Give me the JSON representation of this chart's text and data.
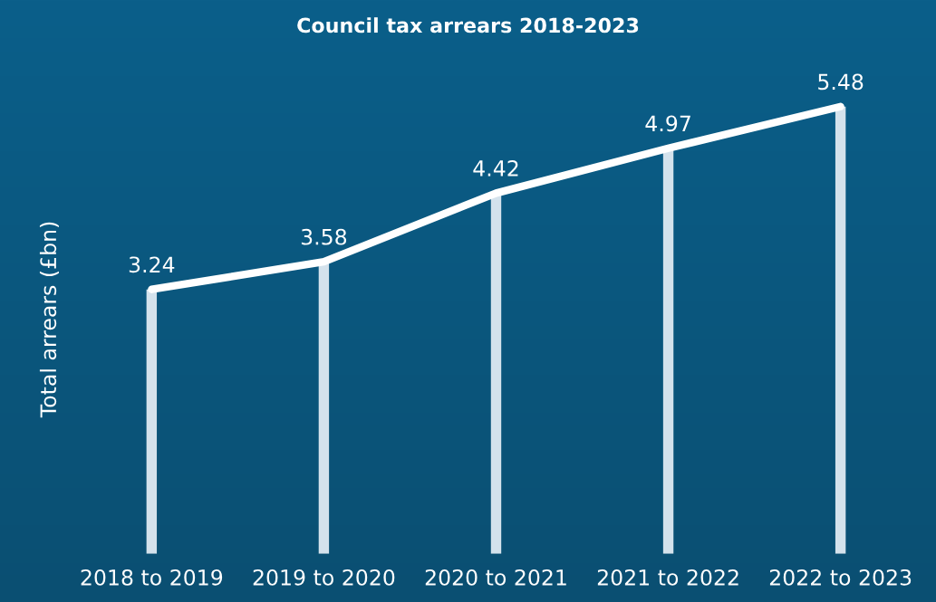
{
  "chart_data": {
    "type": "bar",
    "title": "Council tax arrears 2018-2023",
    "ylabel": "Total arrears (£bn)",
    "categories": [
      "2018 to 2019",
      "2019 to 2020",
      "2020 to 2021",
      "2021 to 2022",
      "2022 to 2023"
    ],
    "series": [
      {
        "color": "#d4e2ec",
        "values": [
          3.24,
          3.58,
          4.42,
          4.97,
          5.48
        ]
      },
      {
        "type": "line",
        "color": "#ffffff",
        "values": [
          3.24,
          3.58,
          4.42,
          4.97,
          5.48
        ],
        "value_labels": [
          "3.24",
          "3.58",
          "4.42",
          "4.97",
          "5.48"
        ]
      }
    ],
    "tick_labels": "x",
    "grid": false,
    "legend": false
  }
}
